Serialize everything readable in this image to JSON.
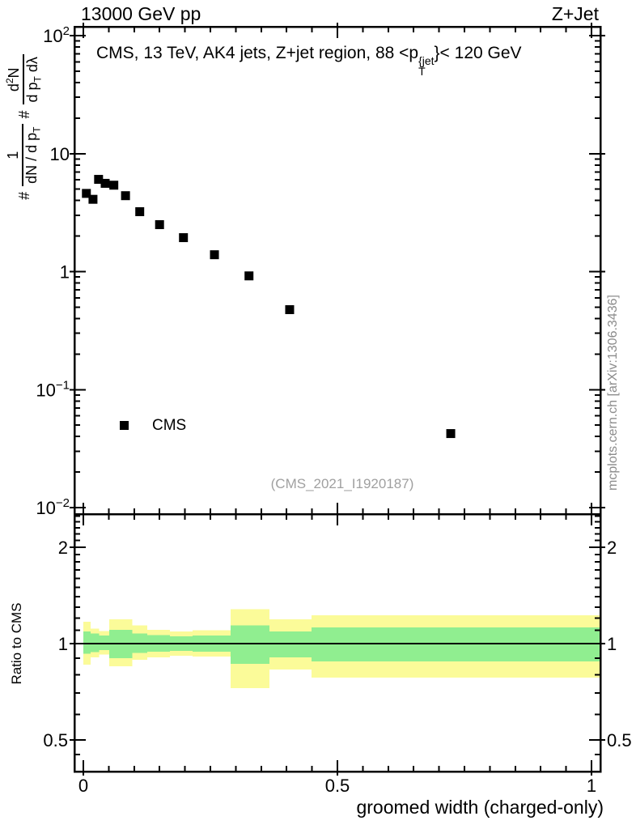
{
  "header": {
    "left": "13000 GeV pp",
    "right": "Z+Jet"
  },
  "plot_title": {
    "text_before_p": "CMS, 13 TeV, AK4 jets, Z+jet region, 88 <p",
    "superscript": "{jet",
    "subscript": "T",
    "text_after": "}< 120 GeV"
  },
  "y_axis_label": {
    "hash1": "#",
    "frac1_numerator": "1",
    "frac1_den_main": "dN / d p",
    "frac1_den_sub": "T",
    "hash2": "#",
    "frac2_num_d": "d",
    "frac2_num_exp": "2",
    "frac2_num_N": "N",
    "frac2_den_main": "d p",
    "frac2_den_sub": "T",
    "frac2_den_tail": " dλ"
  },
  "legend": {
    "label": "CMS"
  },
  "watermark": "(CMS_2021_I1920187)",
  "side_note": "mcplots.cern.ch [arXiv:1306.3436]",
  "ratio_axis_label": "Ratio to CMS",
  "x_axis_label": "groomed width (charged-only)",
  "chart_data": [
    {
      "type": "scatter",
      "panel": "main",
      "title": "CMS, 13 TeV, AK4 jets, Z+jet region, 88 < pT{jet} < 120 GeV",
      "xlabel": "groomed width (charged-only)",
      "ylabel": "# 1/(dN/dpT) # d2N/(dpT dλ)",
      "xscale": "linear",
      "yscale": "log",
      "xlim": [
        -0.0175,
        1.0175
      ],
      "ylim": [
        0.0088,
        119
      ],
      "grid": false,
      "legend_position": "lower-left",
      "xticks": [
        {
          "label": "0",
          "value": 0
        },
        {
          "label": "0.5",
          "value": 0.5
        },
        {
          "label": "1",
          "value": 1
        }
      ],
      "xminor_step": 0.05,
      "yticks": [
        {
          "base": "10",
          "exp": "2",
          "value": 100
        },
        {
          "base": "10",
          "exp": "",
          "value": 10
        },
        {
          "base": "1",
          "exp": "",
          "value": 1
        },
        {
          "base": "10",
          "exp": "−1",
          "value": 0.1
        },
        {
          "base": "10",
          "exp": "−2",
          "value": 0.01
        }
      ],
      "series": [
        {
          "name": "CMS",
          "marker": "filled-square",
          "color": "#000000",
          "x": [
            0.006,
            0.019,
            0.03,
            0.043,
            0.06,
            0.083,
            0.111,
            0.15,
            0.197,
            0.258,
            0.326,
            0.406,
            0.723
          ],
          "y": [
            4.6,
            4.1,
            6.05,
            5.6,
            5.4,
            4.4,
            3.22,
            2.5,
            1.94,
            1.39,
            0.92,
            0.476,
            0.0424
          ]
        }
      ]
    },
    {
      "type": "ratio-band",
      "panel": "ratio",
      "ylabel": "Ratio to CMS",
      "yscale": "log",
      "ylim": [
        0.398,
        2.54
      ],
      "reference_line": 1,
      "yticks": [
        {
          "label": "2",
          "value": 2
        },
        {
          "label": "1",
          "value": 1
        },
        {
          "label": "0.5",
          "value": 0.5
        }
      ],
      "band_colors": {
        "outer": "#fbfb99",
        "inner": "#90ee90"
      },
      "bins": [
        {
          "x0": 0.0,
          "x1": 0.014,
          "yellow": [
            0.86,
            1.17
          ],
          "green": [
            0.93,
            1.09
          ]
        },
        {
          "x0": 0.014,
          "x1": 0.031,
          "yellow": [
            0.905,
            1.115
          ],
          "green": [
            0.94,
            1.075
          ]
        },
        {
          "x0": 0.031,
          "x1": 0.051,
          "yellow": [
            0.925,
            1.095
          ],
          "green": [
            0.955,
            1.06
          ]
        },
        {
          "x0": 0.051,
          "x1": 0.096,
          "yellow": [
            0.85,
            1.19
          ],
          "green": [
            0.9,
            1.105
          ]
        },
        {
          "x0": 0.096,
          "x1": 0.126,
          "yellow": [
            0.89,
            1.14
          ],
          "green": [
            0.935,
            1.075
          ]
        },
        {
          "x0": 0.126,
          "x1": 0.17,
          "yellow": [
            0.905,
            1.105
          ],
          "green": [
            0.944,
            1.062
          ]
        },
        {
          "x0": 0.17,
          "x1": 0.215,
          "yellow": [
            0.916,
            1.09
          ],
          "green": [
            0.95,
            1.055
          ]
        },
        {
          "x0": 0.215,
          "x1": 0.29,
          "yellow": [
            0.91,
            1.1
          ],
          "green": [
            0.944,
            1.06
          ]
        },
        {
          "x0": 0.29,
          "x1": 0.366,
          "yellow": [
            0.726,
            1.28
          ],
          "green": [
            0.865,
            1.14
          ]
        },
        {
          "x0": 0.366,
          "x1": 0.449,
          "yellow": [
            0.83,
            1.19
          ],
          "green": [
            0.906,
            1.09
          ]
        },
        {
          "x0": 0.449,
          "x1": 1.0175,
          "yellow": [
            0.783,
            1.226
          ],
          "green": [
            0.88,
            1.124
          ]
        }
      ]
    }
  ]
}
